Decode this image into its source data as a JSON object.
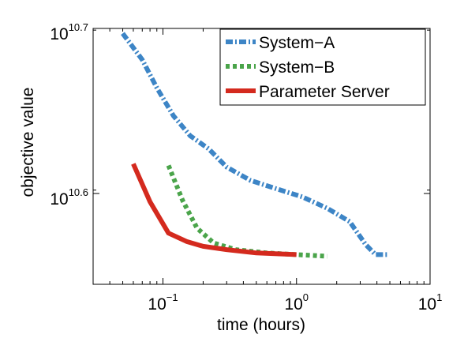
{
  "chart_data": {
    "type": "line",
    "title": "",
    "xlabel": "time (hours)",
    "ylabel": "objective value",
    "x_scale": "log",
    "y_scale": "log",
    "xlim": [
      0.03,
      10
    ],
    "ylim_log10": [
      10.545,
      10.7
    ],
    "x_ticks": [
      {
        "value": 0.1,
        "base": "10",
        "exp": "−1"
      },
      {
        "value": 1,
        "base": "10",
        "exp": "0"
      },
      {
        "value": 10,
        "base": "10",
        "exp": "1"
      }
    ],
    "y_ticks": [
      {
        "log10": 10.6,
        "base": "10",
        "exp": "10.6"
      },
      {
        "log10": 10.7,
        "base": "10",
        "exp": "10.7"
      }
    ],
    "grid": false,
    "legend_position": "top-right",
    "series": [
      {
        "name": "System−A",
        "color": "#3d85c6",
        "style": "dash-dot",
        "points": [
          [
            0.05,
            10.697
          ],
          [
            0.07,
            10.681
          ],
          [
            0.09,
            10.664
          ],
          [
            0.12,
            10.647
          ],
          [
            0.16,
            10.635
          ],
          [
            0.22,
            10.627
          ],
          [
            0.3,
            10.616
          ],
          [
            0.45,
            10.608
          ],
          [
            0.7,
            10.603
          ],
          [
            1.1,
            10.598
          ],
          [
            1.7,
            10.591
          ],
          [
            2.5,
            10.583
          ],
          [
            3.3,
            10.569
          ],
          [
            3.9,
            10.563
          ],
          [
            4.8,
            10.563
          ]
        ]
      },
      {
        "name": "System−B",
        "color": "#4aa44a",
        "style": "dotted",
        "points": [
          [
            0.11,
            10.617
          ],
          [
            0.14,
            10.596
          ],
          [
            0.18,
            10.579
          ],
          [
            0.24,
            10.57
          ],
          [
            0.35,
            10.566
          ],
          [
            0.6,
            10.564
          ],
          [
            1.0,
            10.563
          ],
          [
            1.7,
            10.562
          ]
        ]
      },
      {
        "name": "Parameter Server",
        "color": "#d42a1e",
        "style": "solid",
        "points": [
          [
            0.06,
            10.618
          ],
          [
            0.08,
            10.595
          ],
          [
            0.11,
            10.576
          ],
          [
            0.15,
            10.571
          ],
          [
            0.2,
            10.568
          ],
          [
            0.3,
            10.566
          ],
          [
            0.5,
            10.564
          ],
          [
            1.0,
            10.563
          ]
        ]
      }
    ]
  }
}
